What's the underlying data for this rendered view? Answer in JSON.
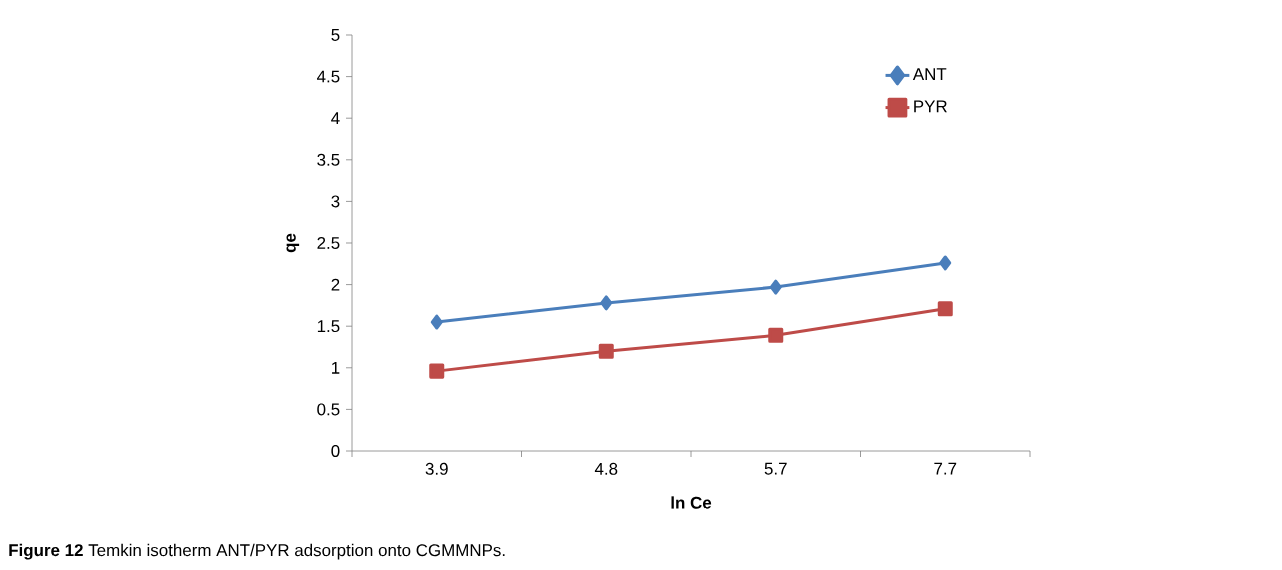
{
  "chart_data": {
    "type": "line",
    "xlabel": "ln Ce",
    "ylabel": "qe",
    "categories": [
      "3.9",
      "4.8",
      "5.7",
      "7.7"
    ],
    "series": [
      {
        "name": "ANT",
        "color": "#4a7ebb",
        "marker": "diamond",
        "values": [
          1.55,
          1.78,
          1.97,
          2.26
        ]
      },
      {
        "name": "PYR",
        "color": "#be4b48",
        "marker": "square",
        "values": [
          0.96,
          1.2,
          1.39,
          1.71
        ]
      }
    ],
    "ylim": [
      0,
      5
    ],
    "yticks": [
      0,
      0.5,
      1,
      1.5,
      2,
      2.5,
      3,
      3.5,
      4,
      4.5,
      5
    ],
    "grid": false,
    "legend": "top right",
    "annotations": [
      "**Figure 12** Temkin isotherm ANT/PYR adsorption onto CGMMNPs."
    ]
  }
}
